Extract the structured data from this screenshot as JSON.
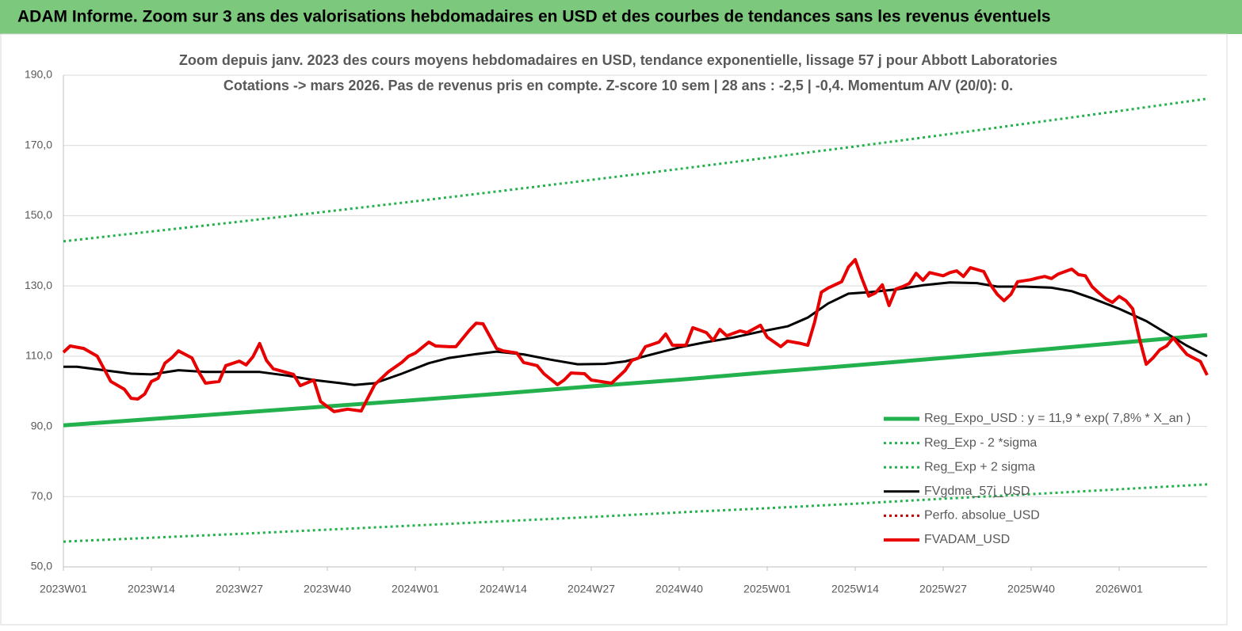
{
  "header": {
    "title": "ADAM Informe. Zoom sur 3 ans des valorisations hebdomadaires en USD et des courbes de tendances sans les revenus éventuels"
  },
  "chart_data": {
    "type": "line",
    "title": "Zoom depuis janv. 2023 des cours moyens hebdomadaires en USD, tendance exponentielle, lissage 57 j pour Abbott Laboratories",
    "subtitle": "Cotations -> mars 2026. Pas de revenus pris en  compte. Z-score 10 sem  | 28 ans : -2,5 | -0,4. Momentum A/V (20/0): 0.",
    "xlim": [
      0,
      169
    ],
    "xticks": [
      {
        "value": 0,
        "label": "2023W01"
      },
      {
        "value": 13,
        "label": "2023W14"
      },
      {
        "value": 26,
        "label": "2023W27"
      },
      {
        "value": 39,
        "label": "2023W40"
      },
      {
        "value": 52,
        "label": "2024W01"
      },
      {
        "value": 65,
        "label": "2024W14"
      },
      {
        "value": 78,
        "label": "2024W27"
      },
      {
        "value": 91,
        "label": "2024W40"
      },
      {
        "value": 104,
        "label": "2025W01"
      },
      {
        "value": 117,
        "label": "2025W14"
      },
      {
        "value": 130,
        "label": "2025W27"
      },
      {
        "value": 143,
        "label": "2025W40"
      },
      {
        "value": 156,
        "label": "2026W01"
      }
    ],
    "ylim": [
      50,
      190
    ],
    "yticks": [
      {
        "value": 50,
        "label": "50,0"
      },
      {
        "value": 70,
        "label": "70,0"
      },
      {
        "value": 90,
        "label": "90,0"
      },
      {
        "value": 110,
        "label": "110,0"
      },
      {
        "value": 130,
        "label": "130,0"
      },
      {
        "value": 150,
        "label": "150,0"
      },
      {
        "value": 170,
        "label": "170,0"
      },
      {
        "value": 190,
        "label": "190,0"
      }
    ],
    "grid": true,
    "legend": "lower right",
    "series": [
      {
        "name": "Reg_Expo_USD : y = 11,9 * exp( 7,8% *  X_an )",
        "color": "#22b14c",
        "style": "solid",
        "width": 5,
        "x": [
          0,
          13,
          26,
          39,
          52,
          65,
          78,
          91,
          104,
          117,
          130,
          143,
          156,
          169
        ],
        "values": [
          90.3,
          92.1,
          93.9,
          95.7,
          97.5,
          99.4,
          101.4,
          103.3,
          105.4,
          107.4,
          109.5,
          111.6,
          113.8,
          116.0
        ]
      },
      {
        "name": "Reg_Exp - 2 *sigma",
        "color": "#22b14c",
        "style": "dotted",
        "width": 3,
        "x": [
          0,
          13,
          26,
          39,
          52,
          65,
          78,
          91,
          104,
          117,
          130,
          143,
          156,
          169
        ],
        "values": [
          57.2,
          58.3,
          59.4,
          60.6,
          61.8,
          63.0,
          64.2,
          65.5,
          66.7,
          68.0,
          69.4,
          70.7,
          72.1,
          73.5
        ]
      },
      {
        "name": "Reg_Exp + 2 sigma",
        "color": "#22b14c",
        "style": "dotted",
        "width": 3,
        "x": [
          0,
          13,
          26,
          39,
          52,
          65,
          78,
          91,
          104,
          117,
          130,
          143,
          156,
          169
        ],
        "values": [
          142.7,
          145.5,
          148.3,
          151.2,
          154.1,
          157.1,
          160.2,
          163.3,
          166.5,
          169.7,
          173.0,
          176.4,
          179.8,
          183.3
        ]
      },
      {
        "name": "FVgdma_57j_USD",
        "color": "#000000",
        "style": "solid",
        "width": 3,
        "x": [
          0,
          2,
          6,
          10,
          13,
          17,
          21,
          25,
          29,
          33,
          37,
          41,
          43,
          46,
          50,
          54,
          57,
          61,
          64,
          68,
          72,
          76,
          80,
          83,
          87,
          91,
          95,
          99,
          103,
          107,
          110,
          113,
          116,
          119,
          123,
          127,
          131,
          135,
          138,
          142,
          146,
          149,
          152,
          156,
          160,
          163,
          166,
          169
        ],
        "values": [
          107.0,
          107.0,
          106.0,
          105.0,
          104.8,
          106.0,
          105.5,
          105.5,
          105.5,
          104.5,
          103.2,
          102.3,
          101.8,
          102.3,
          105.0,
          108.0,
          109.5,
          110.6,
          111.3,
          110.5,
          109.0,
          107.7,
          107.8,
          108.5,
          110.5,
          112.5,
          114.0,
          115.3,
          117.0,
          118.5,
          121.0,
          125.0,
          127.8,
          128.2,
          129.0,
          130.2,
          131.0,
          130.8,
          129.8,
          129.8,
          129.5,
          128.5,
          126.5,
          123.5,
          120.0,
          116.5,
          113.0,
          110.0
        ]
      },
      {
        "name": "Perfo. absolue_USD",
        "color": "#c00000",
        "style": "dotted",
        "width": 3,
        "x": [],
        "values": []
      },
      {
        "name": "FVADAM_USD",
        "color": "#e80000",
        "style": "solid",
        "width": 4,
        "x": [
          0,
          1,
          3,
          5,
          7,
          9,
          10,
          11,
          12,
          13,
          14,
          15,
          16,
          17,
          19,
          20,
          21,
          23,
          24,
          26,
          27,
          28,
          29,
          30,
          31,
          34,
          35,
          37,
          38,
          40,
          42,
          44,
          46,
          48,
          50,
          51,
          52,
          54,
          55,
          57,
          58,
          60,
          61,
          62,
          64,
          65,
          67,
          68,
          70,
          71,
          73,
          74,
          75,
          77,
          78,
          81,
          83,
          84,
          85,
          86,
          88,
          89,
          90,
          92,
          93,
          95,
          96,
          97,
          98,
          100,
          101,
          103,
          104,
          106,
          107,
          109,
          110,
          111,
          112,
          113,
          115,
          116,
          117,
          118,
          119,
          120,
          121,
          122,
          123,
          124,
          125,
          126,
          127,
          128,
          130,
          131,
          132,
          133,
          134,
          136,
          137,
          138,
          139,
          140,
          141,
          143,
          144,
          145,
          146,
          147,
          149,
          150,
          151,
          152,
          153,
          154,
          155,
          156,
          157,
          158,
          159,
          160,
          161,
          162,
          163,
          164,
          165,
          166,
          167,
          168,
          169
        ],
        "values": [
          111.1,
          112.9,
          112.2,
          110.0,
          102.8,
          100.6,
          98.0,
          97.8,
          99.2,
          102.8,
          103.7,
          108.0,
          109.5,
          111.5,
          109.5,
          105.5,
          102.3,
          102.8,
          107.3,
          108.6,
          107.5,
          109.8,
          113.6,
          108.8,
          106.4,
          104.8,
          101.6,
          103.2,
          97.1,
          94.2,
          94.9,
          94.4,
          101.9,
          105.5,
          108.2,
          110.0,
          110.9,
          114.0,
          112.9,
          112.7,
          112.7,
          117.4,
          119.4,
          119.2,
          112.2,
          111.5,
          110.9,
          108.2,
          107.3,
          105.0,
          101.9,
          103.2,
          105.2,
          105.0,
          103.2,
          102.3,
          105.9,
          108.8,
          109.5,
          112.7,
          114.0,
          116.3,
          113.1,
          113.1,
          118.1,
          116.7,
          114.5,
          117.6,
          115.8,
          117.2,
          116.7,
          118.8,
          115.4,
          112.7,
          114.3,
          113.6,
          113.1,
          119.7,
          128.2,
          129.4,
          131.2,
          135.4,
          137.5,
          132.1,
          127.1,
          128.0,
          130.3,
          124.4,
          129.1,
          129.8,
          130.7,
          133.6,
          131.6,
          133.8,
          132.9,
          133.8,
          134.3,
          132.7,
          135.2,
          134.1,
          130.3,
          127.6,
          125.8,
          127.6,
          131.2,
          131.8,
          132.3,
          132.7,
          132.1,
          133.4,
          134.8,
          133.2,
          132.9,
          129.8,
          128.0,
          126.4,
          125.3,
          127.0,
          125.8,
          123.5,
          115.0,
          107.7,
          109.5,
          111.8,
          112.9,
          115.2,
          112.8,
          110.5,
          109.5,
          108.5,
          104.6
        ]
      }
    ]
  }
}
